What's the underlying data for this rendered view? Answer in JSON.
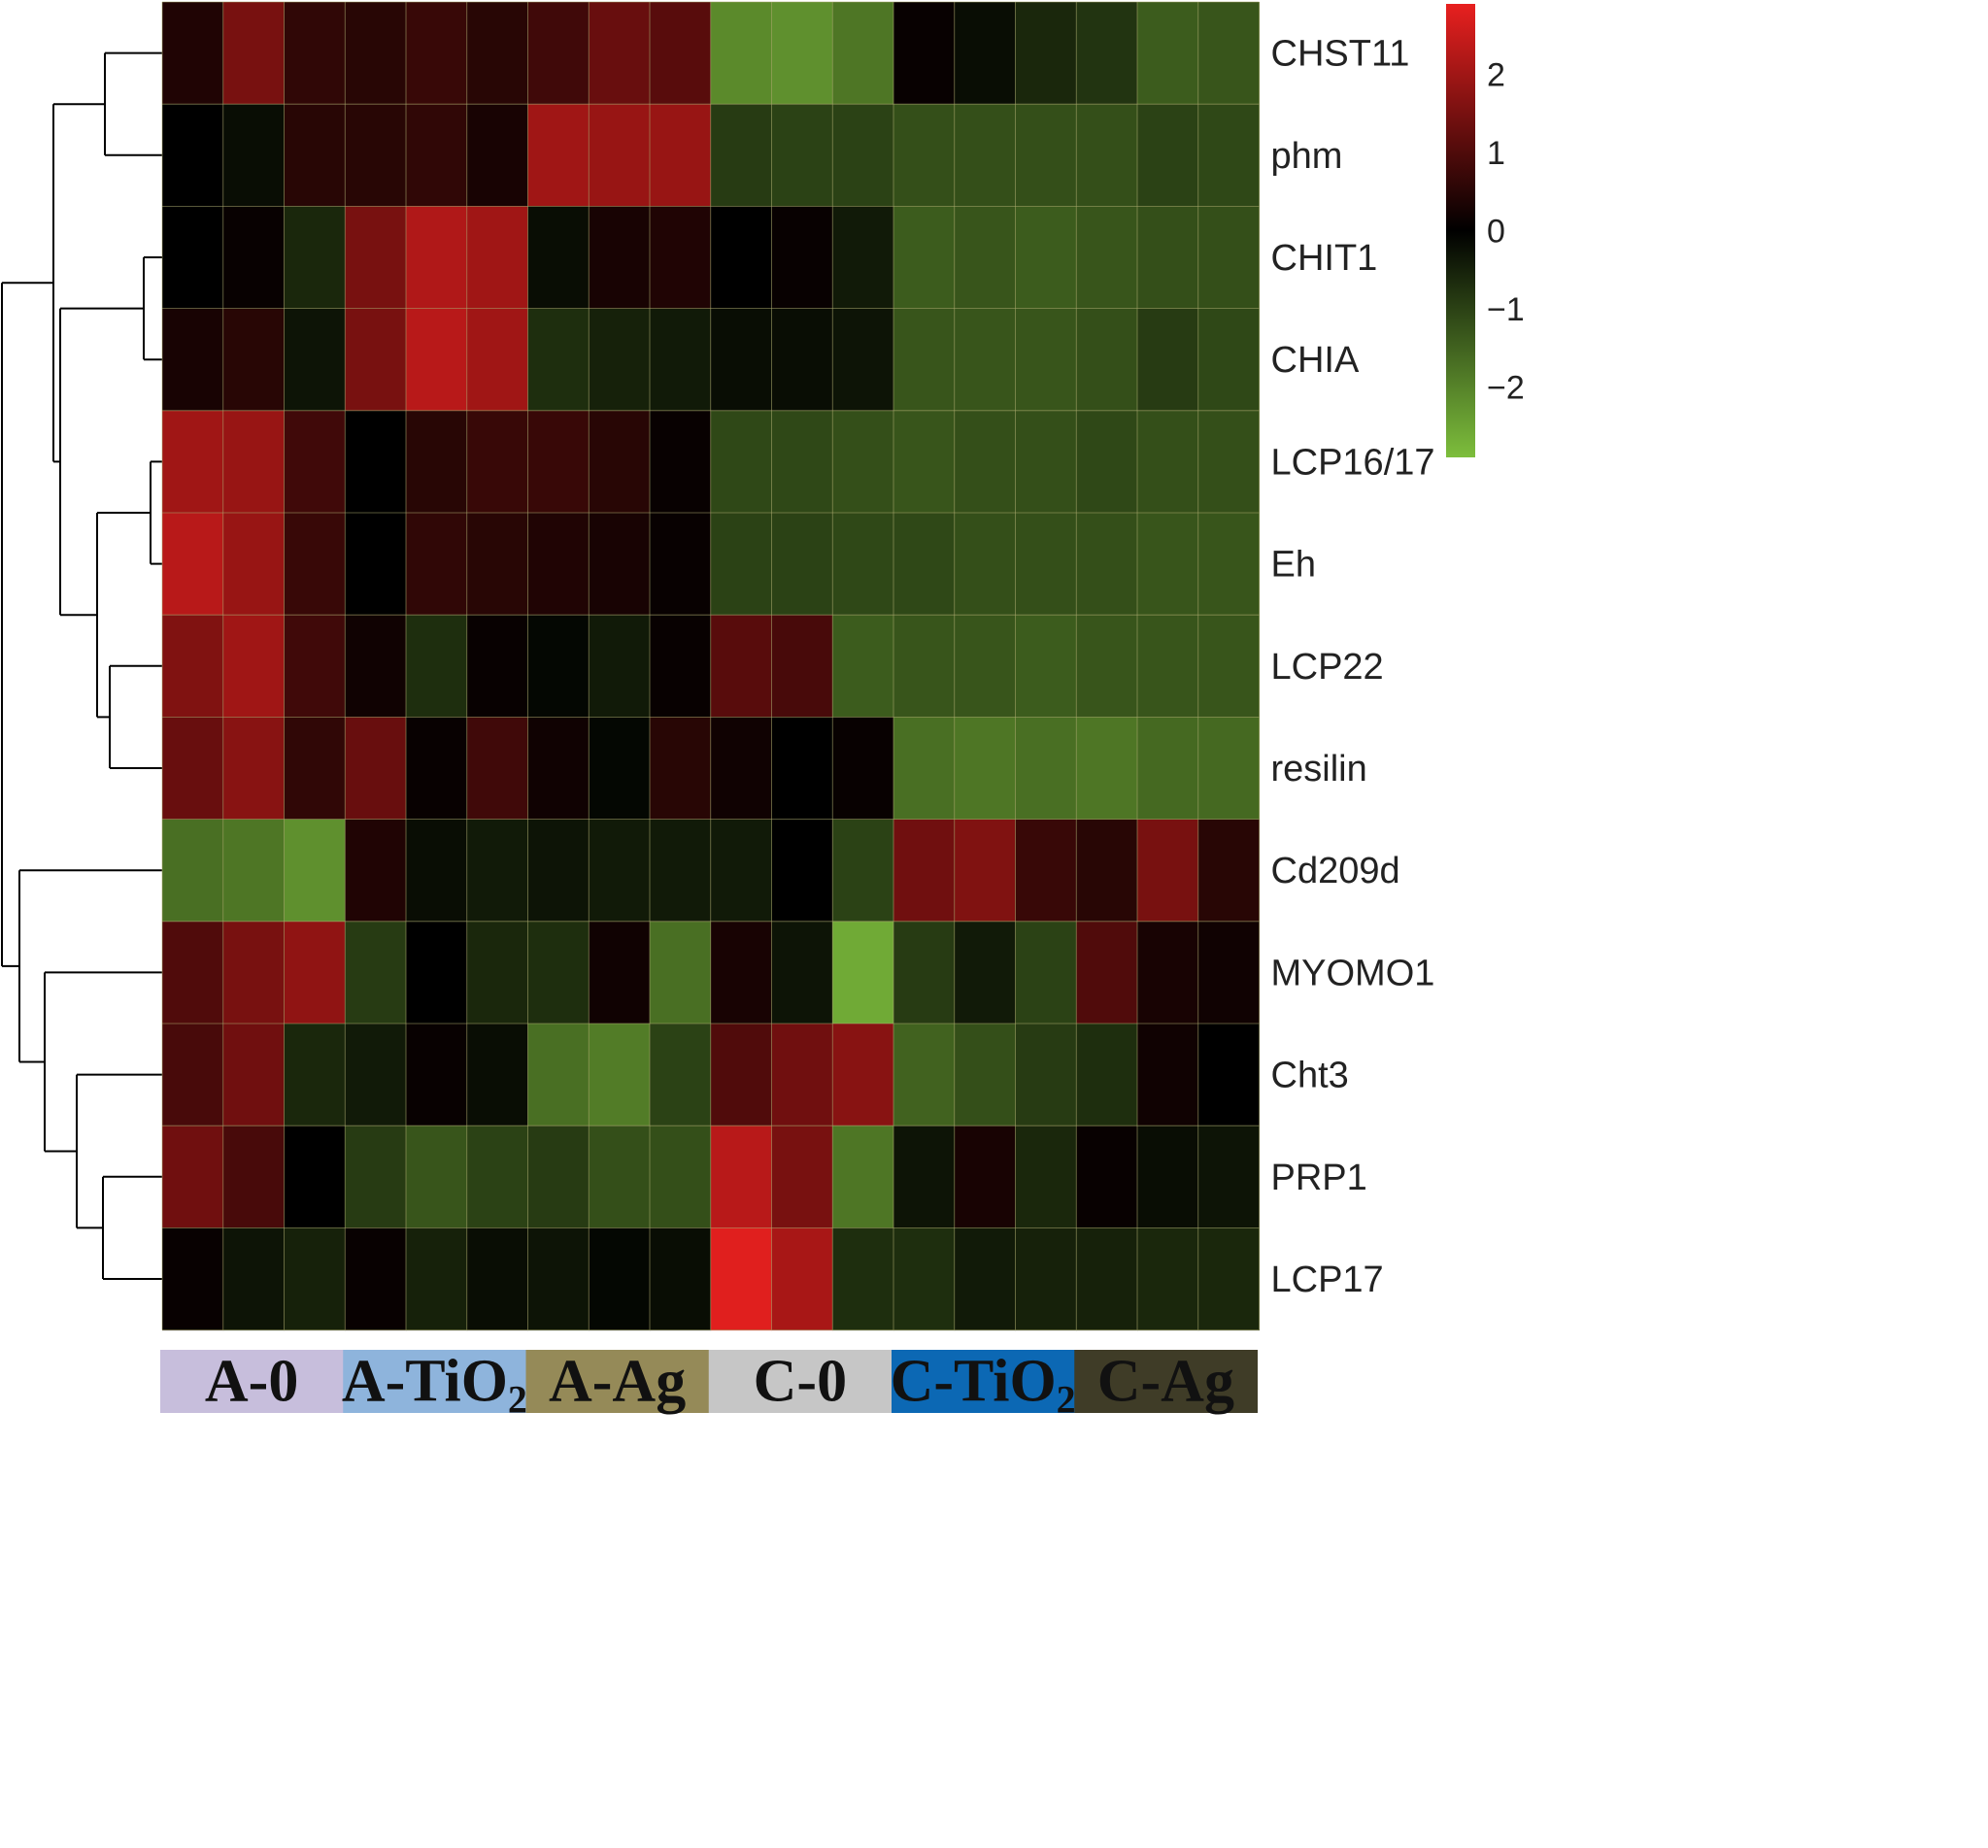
{
  "chart_data": {
    "type": "heatmap",
    "rows": [
      "CHST11",
      "phm",
      "CHIT1",
      "CHIA",
      "LCP16/17",
      "Eh",
      "LCP22",
      "resilin",
      "Cd209d",
      "MYOMO1",
      "Cht3",
      "PRP1",
      "LCP17"
    ],
    "groups": [
      {
        "label": "A-0",
        "base": "A-0",
        "sub": "",
        "color": "#c7bedc",
        "text_color": "#111111"
      },
      {
        "label": "A-TiO2",
        "base": "A-TiO",
        "sub": "2",
        "color": "#8eb4dc",
        "text_color": "#111111"
      },
      {
        "label": "A-Ag",
        "base": "A-Ag",
        "sub": "",
        "color": "#958a58",
        "text_color": "#111111"
      },
      {
        "label": "C-0",
        "base": "C-0",
        "sub": "",
        "color": "#c6c6c6",
        "text_color": "#111111"
      },
      {
        "label": "C-TiO2",
        "base": "C-TiO",
        "sub": "2",
        "color": "#0c68b4",
        "text_color": "#111111"
      },
      {
        "label": "C-Ag",
        "base": "C-Ag",
        "sub": "",
        "color": "#3f3c27",
        "text_color": "#111111"
      }
    ],
    "values": [
      [
        0.4,
        1.5,
        0.6,
        0.5,
        0.7,
        0.5,
        0.8,
        1.3,
        1.1,
        -2.1,
        -2.2,
        -1.8,
        0.1,
        -0.2,
        -0.6,
        -0.8,
        -1.4,
        -1.3
      ],
      [
        0.0,
        -0.2,
        0.5,
        0.5,
        0.6,
        0.3,
        2.0,
        1.9,
        1.9,
        -0.9,
        -1.0,
        -1.0,
        -1.2,
        -1.2,
        -1.2,
        -1.2,
        -1.0,
        -1.1
      ],
      [
        0.0,
        0.1,
        -0.6,
        1.5,
        2.2,
        2.0,
        -0.2,
        0.3,
        0.4,
        0.0,
        0.1,
        -0.4,
        -1.4,
        -1.3,
        -1.4,
        -1.3,
        -1.2,
        -1.2
      ],
      [
        0.3,
        0.5,
        -0.3,
        1.5,
        2.3,
        2.0,
        -0.7,
        -0.5,
        -0.4,
        -0.2,
        -0.2,
        -0.3,
        -1.3,
        -1.3,
        -1.3,
        -1.2,
        -0.9,
        -1.1
      ],
      [
        2.0,
        1.9,
        0.8,
        0.0,
        0.5,
        0.7,
        0.7,
        0.5,
        0.1,
        -1.1,
        -1.1,
        -1.2,
        -1.3,
        -1.2,
        -1.2,
        -1.1,
        -1.2,
        -1.2
      ],
      [
        2.3,
        1.9,
        0.7,
        0.0,
        0.6,
        0.5,
        0.4,
        0.3,
        0.1,
        -1.0,
        -1.0,
        -1.1,
        -1.1,
        -1.2,
        -1.2,
        -1.2,
        -1.3,
        -1.3
      ],
      [
        1.6,
        2.0,
        0.8,
        0.2,
        -0.7,
        0.1,
        -0.1,
        -0.4,
        0.1,
        1.1,
        0.9,
        -1.4,
        -1.3,
        -1.3,
        -1.4,
        -1.3,
        -1.3,
        -1.3
      ],
      [
        1.3,
        1.7,
        0.6,
        1.3,
        0.1,
        0.8,
        0.2,
        -0.1,
        0.5,
        0.2,
        0.0,
        0.1,
        -1.7,
        -1.8,
        -1.7,
        -1.8,
        -1.6,
        -1.6
      ],
      [
        -1.7,
        -1.8,
        -2.2,
        0.4,
        -0.2,
        -0.4,
        -0.3,
        -0.4,
        -0.4,
        -0.4,
        0.0,
        -1.0,
        1.4,
        1.6,
        0.7,
        0.5,
        1.5,
        0.5
      ],
      [
        1.0,
        1.5,
        1.8,
        -0.9,
        0.0,
        -0.6,
        -0.7,
        0.2,
        -1.7,
        0.3,
        -0.3,
        -2.6,
        -0.9,
        -0.4,
        -1.0,
        1.0,
        0.3,
        0.2
      ],
      [
        0.9,
        1.4,
        -0.6,
        -0.4,
        0.1,
        -0.2,
        -1.7,
        -1.9,
        -1.0,
        1.0,
        1.4,
        1.7,
        -1.5,
        -1.2,
        -0.9,
        -0.7,
        0.2,
        0.0
      ],
      [
        1.4,
        0.9,
        0.0,
        -0.9,
        -1.3,
        -1.0,
        -0.9,
        -1.2,
        -1.2,
        2.3,
        1.5,
        -1.8,
        -0.3,
        0.3,
        -0.6,
        0.1,
        -0.2,
        -0.3
      ],
      [
        0.1,
        -0.3,
        -0.5,
        0.1,
        -0.5,
        -0.2,
        -0.3,
        -0.1,
        -0.2,
        2.8,
        2.1,
        -0.7,
        -0.7,
        -0.4,
        -0.5,
        -0.5,
        -0.6,
        -0.6
      ]
    ],
    "color_scale": {
      "low": "#7dbe3c",
      "mid": "#000000",
      "high": "#e8201f",
      "vmin": -2.9,
      "vmax": 2.9
    },
    "legend_ticks": [
      2,
      1,
      0,
      -1,
      -2
    ],
    "legend_tick_labels": [
      "2",
      "1",
      "0",
      "−1",
      "−2"
    ],
    "dendrogram_side": "left",
    "grid_line_color": "#a9a86e"
  }
}
